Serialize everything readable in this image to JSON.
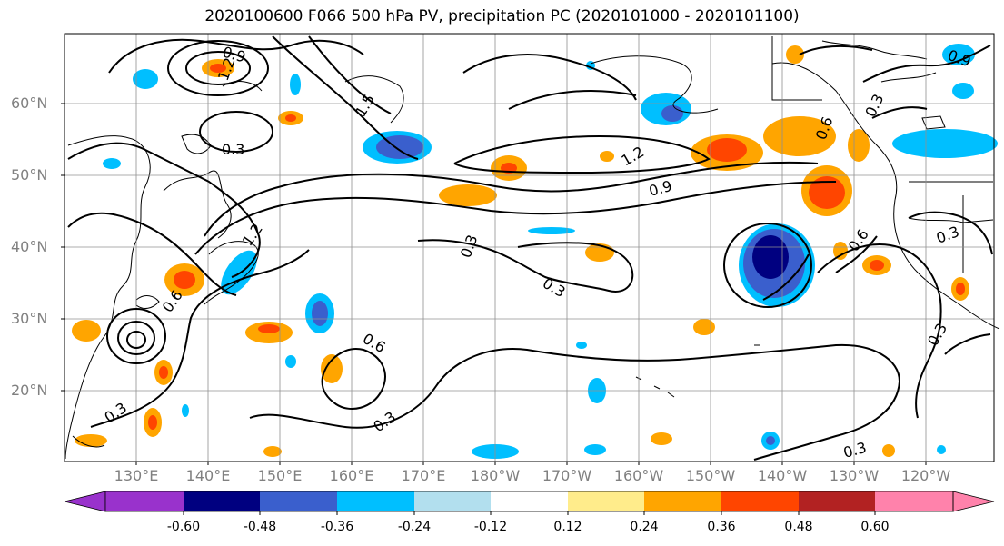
{
  "title": "2020100600 F066 500 hPa PV, precipitation PC (2020101000 - 2020101100)",
  "lat_labels": [
    "60°N",
    "50°N",
    "40°N",
    "30°N",
    "20°N"
  ],
  "lon_labels": [
    "130°E",
    "140°E",
    "150°E",
    "160°E",
    "170°E",
    "180°W",
    "170°W",
    "160°W",
    "150°W",
    "140°W",
    "130°W",
    "120°W"
  ],
  "colorbar": {
    "labels": [
      "-0.60",
      "-0.48",
      "-0.36",
      "-0.24",
      "-0.12",
      "0.12",
      "0.24",
      "0.36",
      "0.48",
      "0.60"
    ],
    "colors": [
      "#9932cc",
      "#000080",
      "#3a5fcd",
      "#00bfff",
      "#b2dfee",
      "#ffffff",
      "#ffec8b",
      "#ffa500",
      "#ff4500",
      "#b22222",
      "#ff82ab"
    ]
  },
  "contour_labels": [
    "0.9",
    "1.2",
    "1.5",
    "0.3",
    "1.2",
    "0.6",
    "1.2",
    "0.9",
    "0.3",
    "0.6",
    "0.3",
    "0.6",
    "0.3",
    "0.6",
    "0.3",
    "0.9",
    "0.3",
    "0.3",
    "0.3",
    "0.3"
  ]
}
